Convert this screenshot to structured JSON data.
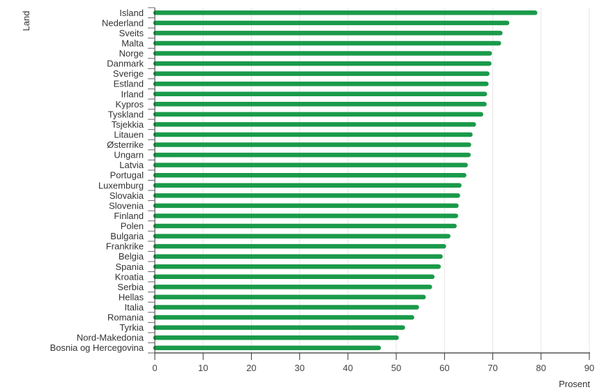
{
  "chart_data": {
    "type": "bar",
    "orientation": "horizontal",
    "title": "",
    "xlabel": "Prosent",
    "ylabel": "Land",
    "xlim": [
      0,
      90
    ],
    "xticks": [
      0,
      10,
      20,
      30,
      40,
      50,
      60,
      70,
      80,
      90
    ],
    "grid": "vertical",
    "bar_color": "#1a9a4a",
    "categories": [
      "Island",
      "Nederland",
      "Sveits",
      "Malta",
      "Norge",
      "Danmark",
      "Sverige",
      "Estland",
      "Irland",
      "Kypros",
      "Tyskland",
      "Tsjekkia",
      "Litauen",
      "Østerrike",
      "Ungarn",
      "Latvia",
      "Portugal",
      "Luxemburg",
      "Slovakia",
      "Slovenia",
      "Finland",
      "Polen",
      "Bulgaria",
      "Frankrike",
      "Belgia",
      "Spania",
      "Kroatia",
      "Serbia",
      "Hellas",
      "Italia",
      "Romania",
      "Tyrkia",
      "Nord-Makedonia",
      "Bosnia og Hercegovina"
    ],
    "values": [
      79.2,
      73.4,
      72.0,
      71.7,
      69.8,
      69.7,
      69.3,
      69.1,
      68.8,
      68.7,
      68.0,
      66.5,
      65.8,
      65.5,
      65.4,
      64.8,
      64.5,
      63.5,
      63.2,
      62.9,
      62.8,
      62.5,
      61.2,
      60.3,
      59.6,
      59.2,
      57.9,
      57.4,
      56.1,
      54.7,
      53.7,
      51.8,
      50.5,
      46.8
    ]
  }
}
